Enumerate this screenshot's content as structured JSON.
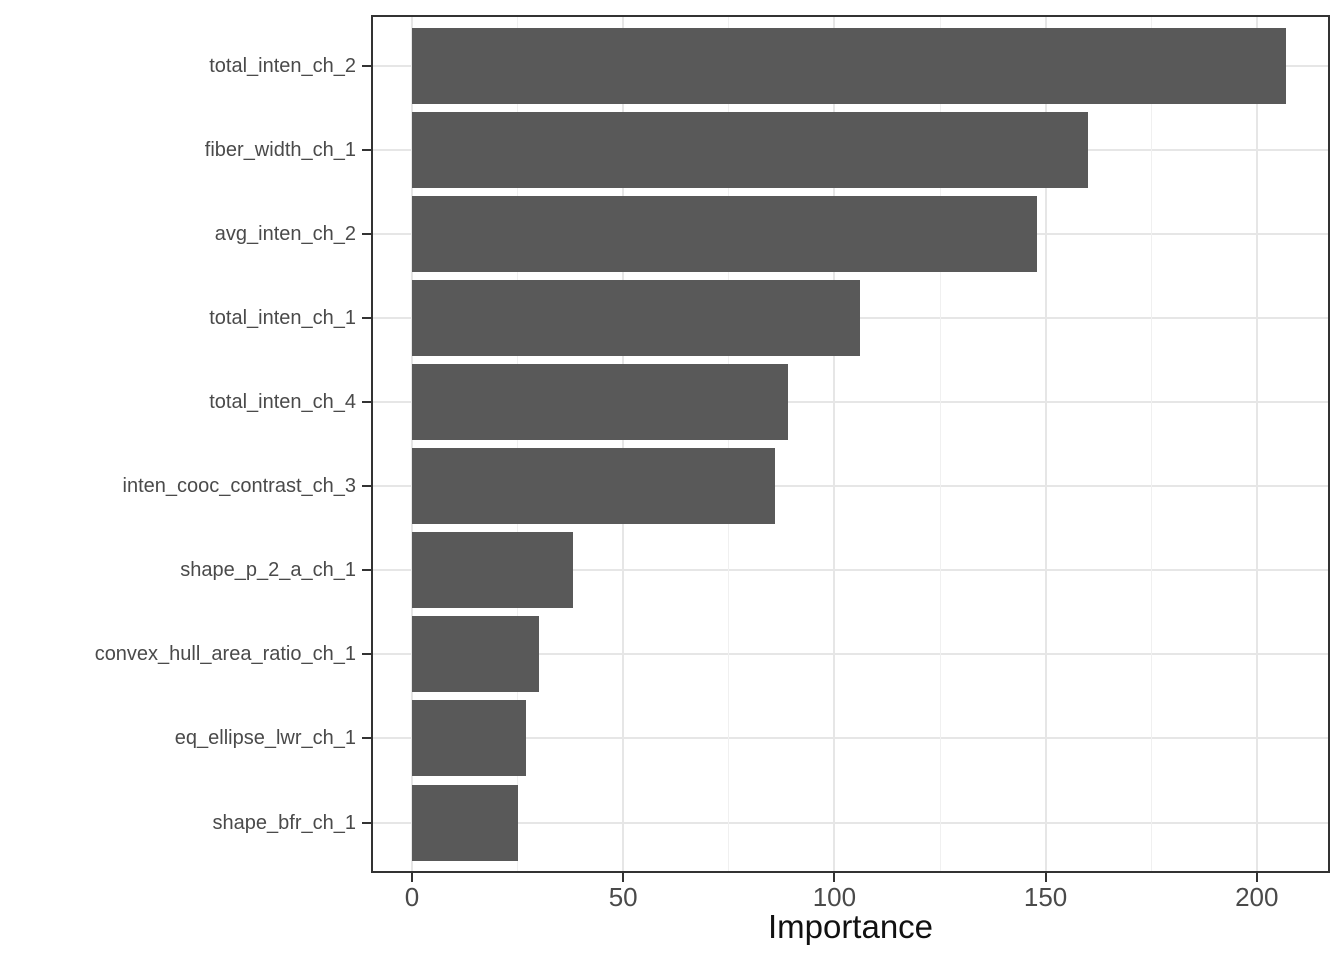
{
  "chart_data": {
    "type": "bar",
    "orientation": "horizontal",
    "title": "",
    "xlabel": "Importance",
    "ylabel": "",
    "categories": [
      "total_inten_ch_2",
      "fiber_width_ch_1",
      "avg_inten_ch_2",
      "total_inten_ch_1",
      "total_inten_ch_4",
      "inten_cooc_contrast_ch_3",
      "shape_p_2_a_ch_1",
      "convex_hull_area_ratio_ch_1",
      "eq_ellipse_lwr_ch_1",
      "shape_bfr_ch_1"
    ],
    "values": [
      207,
      160,
      148,
      106,
      89,
      86,
      38,
      30,
      27,
      25
    ],
    "xlim": [
      0,
      217
    ],
    "x_major_ticks": [
      0,
      50,
      100,
      150,
      200
    ],
    "x_tick_labels": [
      "0",
      "50",
      "100",
      "150",
      "200"
    ],
    "x_minor_ticks": [
      25,
      75,
      125,
      175
    ],
    "grid": true,
    "legend": "none",
    "colors": {
      "bar": "#595959",
      "grid_major": "#e6e6e6",
      "grid_minor": "#f0f0f0",
      "border": "#333333",
      "tick": "#333333",
      "axis_text": "#4a4a4a",
      "axis_title": "#111111",
      "background": "#ffffff"
    }
  }
}
